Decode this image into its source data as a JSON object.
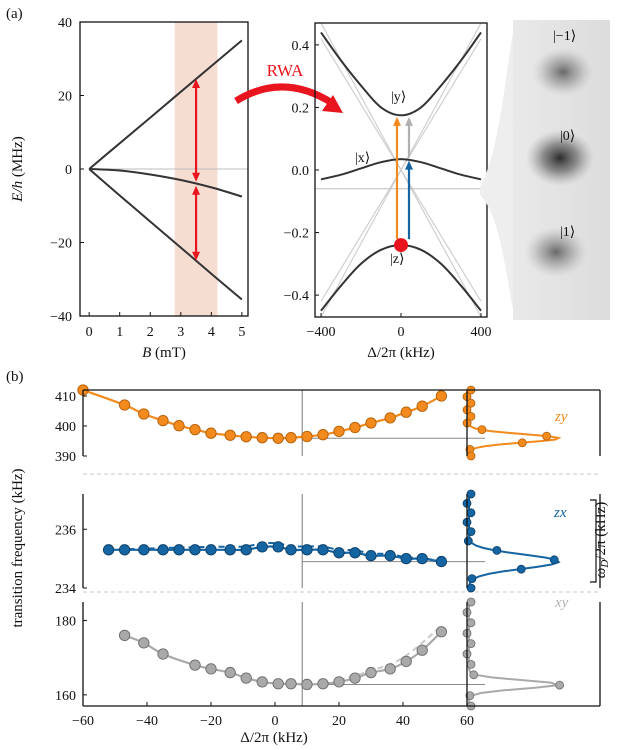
{
  "panel_labels": {
    "a": "(a)",
    "b": "(b)"
  },
  "colors": {
    "dark": "#333333",
    "orange": "#f28a1e",
    "blue": "#1565a3",
    "gray": "#a9a9a9",
    "red": "#e8141e",
    "band": "#f6ddd2",
    "light": "#cfcfcf"
  },
  "rwa_label": "RWA",
  "spots": {
    "labels": [
      "|−1⟩",
      "|0⟩",
      "|1⟩"
    ]
  },
  "chart_data": [
    {
      "id": "a-left",
      "type": "line",
      "xlabel_italic": "B",
      "xlabel_rest": " (mT)",
      "ylabel_italic": "E/h",
      "ylabel_rest": " (MHz)",
      "xlim": [
        -0.3,
        5.2
      ],
      "ylim": [
        -40,
        40
      ],
      "xticks": [
        "0",
        "1",
        "2",
        "3",
        "4",
        "5"
      ],
      "yticks": [
        "−40",
        "−20",
        "0",
        "20",
        "40"
      ],
      "highlight_band": [
        2.8,
        4.2
      ],
      "arrows_at_B": 3.5,
      "series": [
        {
          "x": [
            0,
            1,
            2,
            3,
            4,
            5
          ],
          "y": [
            0,
            7,
            14,
            21,
            28,
            35
          ]
        },
        {
          "x": [
            0,
            1,
            2,
            3,
            4,
            5
          ],
          "y": [
            0,
            -0.4,
            -1.5,
            -3.0,
            -5.0,
            -7.5
          ]
        },
        {
          "x": [
            0,
            1,
            2,
            3,
            4,
            5
          ],
          "y": [
            0,
            -7.2,
            -14.3,
            -21.4,
            -28.5,
            -35.5
          ]
        }
      ]
    },
    {
      "id": "a-middle",
      "type": "line",
      "xlabel": "Δ/2π (kHz)",
      "xlim": [
        -430,
        430
      ],
      "ylim": [
        -0.47,
        0.47
      ],
      "xticks": [
        "−400",
        "0",
        "400"
      ],
      "yticks": [
        "−0.4",
        "−0.2",
        "0.0",
        "0.2",
        "0.4"
      ],
      "state_labels": {
        "y": "|y⟩",
        "x": "|x⟩",
        "z": "|z⟩"
      },
      "upper_branch": {
        "x": [
          -400,
          -300,
          -200,
          -100,
          0,
          100,
          200,
          300,
          400
        ],
        "y": [
          0.44,
          0.35,
          0.27,
          0.2,
          0.175,
          0.2,
          0.27,
          0.35,
          0.44
        ]
      },
      "middle_branch": {
        "x": [
          -400,
          -300,
          -200,
          -100,
          0,
          100,
          200,
          300,
          400
        ],
        "y": [
          -0.03,
          -0.015,
          0.005,
          0.025,
          0.035,
          0.025,
          0.005,
          -0.015,
          -0.03
        ]
      },
      "lower_branch": {
        "x": [
          -400,
          -300,
          -200,
          -100,
          0,
          100,
          200,
          300,
          400
        ],
        "y": [
          -0.45,
          -0.37,
          -0.3,
          -0.255,
          -0.24,
          -0.255,
          -0.3,
          -0.37,
          -0.45
        ]
      }
    },
    {
      "id": "b-zy",
      "type": "scatter",
      "label": "zy",
      "ylim": [
        390,
        412
      ],
      "yticks": [
        "390",
        "400",
        "410"
      ],
      "x": [
        -60,
        -47,
        -41,
        -35,
        -30,
        -25,
        -20,
        -14,
        -9,
        -4,
        1,
        5,
        10,
        15,
        20,
        25,
        30,
        36,
        41,
        46,
        52
      ],
      "y": [
        412,
        407,
        404,
        401.8,
        400.1,
        398.8,
        397.6,
        396.9,
        396.4,
        396.1,
        395.9,
        396.1,
        396.5,
        397.1,
        398.2,
        399.5,
        401,
        402.7,
        404.6,
        406.6,
        410
      ]
    },
    {
      "id": "b-zx",
      "type": "scatter",
      "label": "zx",
      "ylim": [
        234,
        237.2
      ],
      "yticks": [
        "234",
        "236"
      ],
      "x": [
        -52,
        -47,
        -41,
        -35,
        -30,
        -25,
        -20,
        -14,
        -9,
        -4,
        1,
        5,
        10,
        15,
        20,
        25,
        30,
        36,
        41,
        46,
        52
      ],
      "y": [
        235.3,
        235.3,
        235.3,
        235.3,
        235.3,
        235.3,
        235.3,
        235.3,
        235.3,
        235.4,
        235.4,
        235.3,
        235.3,
        235.3,
        235.2,
        235.2,
        235.1,
        235.1,
        235.0,
        235.0,
        234.9
      ]
    },
    {
      "id": "b-xy",
      "type": "scatter",
      "label": "xy",
      "ylim": [
        157,
        185
      ],
      "yticks": [
        "160",
        "180"
      ],
      "x": [
        -47,
        -41,
        -35,
        -25,
        -20,
        -14,
        -9,
        -4,
        1,
        5,
        10,
        15,
        20,
        25,
        30,
        36,
        41,
        46,
        52
      ],
      "y": [
        176,
        174,
        171,
        168,
        167,
        166,
        164.5,
        163.5,
        163,
        163,
        162.8,
        163,
        163.5,
        164.5,
        166,
        167,
        169,
        172,
        177
      ]
    }
  ],
  "panel_b": {
    "xlabel": "Δ/2π (kHz)",
    "ylabel": "transition frequency (kHz)",
    "right_ylabel_italic": "ω",
    "right_ylabel_sub": "D",
    "right_ylabel_rest": "/2π (kHz)",
    "xlim": [
      -60,
      60
    ],
    "xticks": [
      "−60",
      "−40",
      "−20",
      "0",
      "20",
      "40",
      "60"
    ],
    "vline_at": 8.5
  }
}
